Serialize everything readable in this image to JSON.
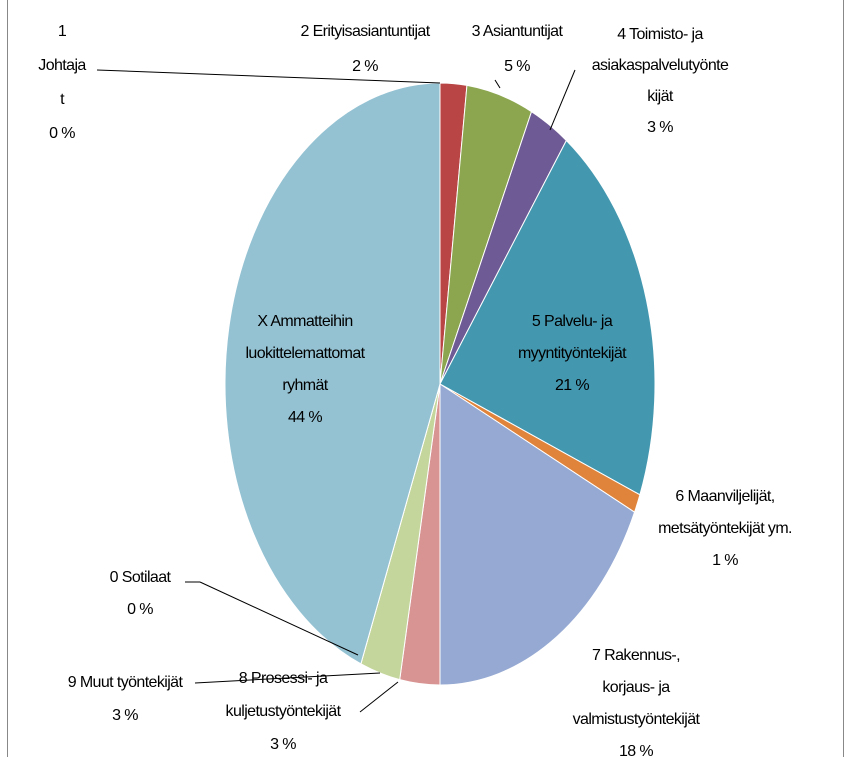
{
  "chart_data": {
    "type": "pie",
    "categories": [
      [
        "1",
        "Johtaja",
        "t"
      ],
      [
        "2 Erityisasiantuntijat"
      ],
      [
        "3 Asiantuntijat"
      ],
      [
        "4 Toimisto- ja",
        "asiakaspalvelutyönte",
        "kijät"
      ],
      [
        "5 Palvelu- ja",
        "myyntityöntekijät"
      ],
      [
        "6 Maanviljelijät,",
        "metsätyöntekijät ym."
      ],
      [
        "7 Rakennus-,",
        "korjaus- ja",
        "valmistustyöntekijät"
      ],
      [
        "8 Prosessi- ja",
        "kuljetustyöntekijät"
      ],
      [
        "9 Muut työntekijät"
      ],
      [
        "0 Sotilaat"
      ],
      [
        "X Ammatteihin",
        "luokittelemattomat",
        "ryhmät"
      ]
    ],
    "values": [
      0,
      2,
      5,
      3,
      21,
      1,
      18,
      3,
      3,
      0,
      44
    ],
    "value_labels": [
      "0 %",
      "2 %",
      "5 %",
      "3 %",
      "21 %",
      "1 %",
      "18 %",
      "3 %",
      "3 %",
      "0 %",
      "44 %"
    ],
    "colors": [
      "#4f81bd",
      "#b94544",
      "#8ba64e",
      "#6e5a94",
      "#4398b0",
      "#e0843c",
      "#95a9d2",
      "#d79493",
      "#c4d69b",
      "#7f7f7f",
      "#94c2d3"
    ]
  }
}
